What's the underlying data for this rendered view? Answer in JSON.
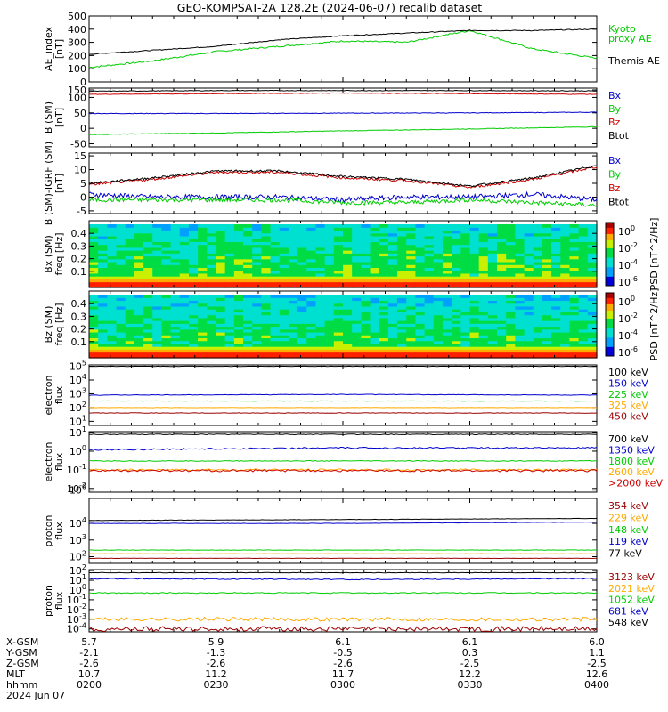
{
  "page": {
    "title": "GEO-KOMPSAT-2A 128.2E (2024-06-07) recalib dataset"
  },
  "colors": {
    "black": "#000000",
    "blue": "#0000cc",
    "green": "#00cc00",
    "red": "#cc0000",
    "orange": "#ffaa00",
    "darkred": "#990000"
  },
  "panels": [
    {
      "id": "ae",
      "ylabel": [
        "AE_index",
        "[nT]"
      ],
      "ylim": [
        0,
        500
      ],
      "yticks": [
        "500",
        "400",
        "300",
        "200",
        "100",
        "0"
      ],
      "legend": [
        {
          "text": "Kyoto",
          "color": "#00cc00"
        },
        {
          "text": "proxy AE",
          "color": "#00cc00"
        },
        {
          "text": "Themis AE",
          "color": "#000000"
        }
      ]
    },
    {
      "id": "bsm",
      "ylabel": [
        "B (SM)",
        "[nT]"
      ],
      "ylim": [
        -60,
        130
      ],
      "yticks": [
        "150",
        "100",
        "50",
        "0",
        "-50"
      ],
      "legend": [
        {
          "text": "Bx",
          "color": "#0000cc"
        },
        {
          "text": "By",
          "color": "#00cc00"
        },
        {
          "text": "Bz",
          "color": "#cc0000"
        },
        {
          "text": "Btot",
          "color": "#000000"
        }
      ]
    },
    {
      "id": "bres",
      "ylabel": [
        "B (SM)-IGRF (SM)",
        "[nT]"
      ],
      "ylim": [
        -6,
        16
      ],
      "yticks": [
        "15",
        "10",
        "5",
        "0",
        "-5"
      ],
      "legend": [
        {
          "text": "Bx",
          "color": "#0000cc"
        },
        {
          "text": "By",
          "color": "#00cc00"
        },
        {
          "text": "Bz",
          "color": "#cc0000"
        },
        {
          "text": "Btot",
          "color": "#000000"
        }
      ]
    },
    {
      "id": "bxspec",
      "ylabel": [
        "Bx (SM)",
        "freq [Hz]"
      ],
      "yticks": [
        "0.4",
        "0.3",
        "0.2",
        "0.1"
      ],
      "colorbar": {
        "ticks": [
          "10^0",
          "10^-2",
          "10^-4",
          "10^-6"
        ],
        "label": "PSD [nT^2/Hz]"
      }
    },
    {
      "id": "bzspec",
      "ylabel": [
        "Bz (SM)",
        "freq [Hz]"
      ],
      "yticks": [
        "0.4",
        "0.3",
        "0.2",
        "0.1"
      ],
      "colorbar": {
        "ticks": [
          "10^0",
          "10^-2",
          "10^-4",
          "10^-6"
        ],
        "label": "PSD [nT^2/Hz]"
      }
    },
    {
      "id": "eflux1",
      "ylabel": [
        "electron",
        "flux"
      ],
      "yticks": [
        "10^5",
        "10^4",
        "10^3",
        "10^2",
        "10^1"
      ],
      "legend": [
        {
          "text": "100 keV",
          "color": "#000000"
        },
        {
          "text": "150 keV",
          "color": "#0000cc"
        },
        {
          "text": "225 keV",
          "color": "#00cc00"
        },
        {
          "text": "325 keV",
          "color": "#ffaa00"
        },
        {
          "text": "450 keV",
          "color": "#990000"
        }
      ]
    },
    {
      "id": "eflux2",
      "ylabel": [
        "electron",
        "flux"
      ],
      "yticks": [
        "10^1",
        "10^0",
        "10^-1",
        "10^-2"
      ],
      "legend": [
        {
          "text": "700 keV",
          "color": "#000000"
        },
        {
          "text": "1350 keV",
          "color": "#0000cc"
        },
        {
          "text": "1800 keV",
          "color": "#00cc00"
        },
        {
          "text": "2600 keV",
          "color": "#ffaa00"
        },
        {
          "text": ">2000 keV",
          "color": "#cc0000"
        }
      ]
    },
    {
      "id": "pflux1",
      "ylabel": [
        "proton",
        "flux"
      ],
      "yticks": [
        "10^6",
        "10^4",
        "10^3",
        "10^2"
      ],
      "legend": [
        {
          "text": "354 keV",
          "color": "#990000"
        },
        {
          "text": "229 keV",
          "color": "#ffaa00"
        },
        {
          "text": "148 keV",
          "color": "#00cc00"
        },
        {
          "text": "119 keV",
          "color": "#0000cc"
        },
        {
          "text": "77 keV",
          "color": "#000000"
        }
      ]
    },
    {
      "id": "pflux2",
      "ylabel": [
        "proton",
        "flux"
      ],
      "yticks": [
        "10^2",
        "10^1",
        "10^0",
        "10^-1",
        "10^-2",
        "10^-3",
        "10^-4"
      ],
      "legend": [
        {
          "text": "3123 keV",
          "color": "#990000"
        },
        {
          "text": "2021 keV",
          "color": "#ffaa00"
        },
        {
          "text": "1052 keV",
          "color": "#00cc00"
        },
        {
          "text": "681 keV",
          "color": "#0000cc"
        },
        {
          "text": "548 keV",
          "color": "#000000"
        }
      ]
    }
  ],
  "xaxis": {
    "row_labels": [
      "X-GSM",
      "Y-GSM",
      "Z-GSM",
      "MLT",
      "hhmm",
      "2024 Jun 07"
    ],
    "ticks": [
      {
        "x": "5.7",
        "y": "-2.1",
        "z": "-2.6",
        "mlt": "10.7",
        "hhmm": "0200"
      },
      {
        "x": "5.9",
        "y": "-1.3",
        "z": "-2.6",
        "mlt": "11.2",
        "hhmm": "0230"
      },
      {
        "x": "6.1",
        "y": "-0.5",
        "z": "-2.6",
        "mlt": "11.7",
        "hhmm": "0300"
      },
      {
        "x": "6.1",
        "y": "0.3",
        "z": "-2.5",
        "mlt": "12.2",
        "hhmm": "0330"
      },
      {
        "x": "6.0",
        "y": "1.1",
        "z": "-2.5",
        "mlt": "12.6",
        "hhmm": "0400"
      }
    ]
  },
  "chart_data": [
    {
      "type": "line",
      "title": "GEO-KOMPSAT-2A 128.2E (2024-06-07) recalib dataset",
      "ylabel": "AE_index [nT]",
      "ylim": [
        0,
        500
      ],
      "x": [
        "0200",
        "0215",
        "0230",
        "0245",
        "0300",
        "0315",
        "0330",
        "0345",
        "0400"
      ],
      "series": [
        {
          "name": "Kyoto proxy AE",
          "values": [
            110,
            160,
            230,
            270,
            310,
            300,
            390,
            250,
            180
          ]
        },
        {
          "name": "Themis AE",
          "values": [
            210,
            240,
            270,
            320,
            350,
            370,
            390,
            390,
            400
          ]
        }
      ]
    },
    {
      "type": "line",
      "ylabel": "B (SM) [nT]",
      "ylim": [
        -60,
        130
      ],
      "x": [
        "0200",
        "0230",
        "0300",
        "0330",
        "0400"
      ],
      "series": [
        {
          "name": "Bx",
          "values": [
            48,
            48,
            49,
            50,
            52
          ]
        },
        {
          "name": "By",
          "values": [
            -20,
            -15,
            -8,
            -2,
            5
          ]
        },
        {
          "name": "Bz",
          "values": [
            110,
            112,
            114,
            112,
            110
          ]
        },
        {
          "name": "Btot",
          "values": [
            120,
            122,
            122,
            122,
            121
          ]
        }
      ]
    },
    {
      "type": "line",
      "ylabel": "B (SM)-IGRF (SM) [nT]",
      "ylim": [
        -6,
        16
      ],
      "x": [
        "0200",
        "0215",
        "0230",
        "0245",
        "0300",
        "0315",
        "0330",
        "0345",
        "0400"
      ],
      "series": [
        {
          "name": "Bx",
          "values": [
            1,
            0,
            0,
            0,
            -1,
            0,
            0,
            1,
            -1
          ]
        },
        {
          "name": "By",
          "values": [
            -1,
            -1,
            -1,
            -1,
            -2,
            -2,
            -1,
            -2,
            -3
          ]
        },
        {
          "name": "Bz",
          "values": [
            4.5,
            6.5,
            9,
            9,
            7,
            6,
            3.5,
            6.5,
            11
          ]
        },
        {
          "name": "Btot",
          "values": [
            5,
            7,
            9.5,
            9.5,
            7.5,
            6.5,
            4,
            7,
            11.5
          ]
        }
      ]
    },
    {
      "type": "heatmap",
      "ylabel": "Bx (SM) freq [Hz]",
      "ylim": [
        0,
        0.5
      ],
      "colorbar": "PSD [nT^2/Hz]",
      "zrange": [
        "10^-6",
        "10^0"
      ]
    },
    {
      "type": "heatmap",
      "ylabel": "Bz (SM) freq [Hz]",
      "ylim": [
        0,
        0.5
      ],
      "colorbar": "PSD [nT^2/Hz]",
      "zrange": [
        "10^-6",
        "10^0"
      ]
    },
    {
      "type": "line",
      "ylabel": "electron flux",
      "yscale": "log",
      "x": [
        "0200",
        "0300",
        "0400"
      ],
      "series": [
        {
          "name": "100 keV",
          "values": [
            100000,
            100000,
            100000
          ]
        },
        {
          "name": "150 keV",
          "values": [
            800,
            900,
            800
          ]
        },
        {
          "name": "225 keV",
          "values": [
            300,
            300,
            300
          ]
        },
        {
          "name": "325 keV",
          "values": [
            100,
            100,
            100
          ]
        },
        {
          "name": "450 keV",
          "values": [
            40,
            40,
            40
          ]
        }
      ]
    },
    {
      "type": "line",
      "ylabel": "electron flux",
      "yscale": "log",
      "x": [
        "0200",
        "0300",
        "0400"
      ],
      "series": [
        {
          "name": "700 keV",
          "values": [
            8,
            8,
            8
          ]
        },
        {
          "name": "1350 keV",
          "values": [
            1.2,
            1.5,
            1.5
          ]
        },
        {
          "name": "1800 keV",
          "values": [
            0.3,
            0.3,
            0.3
          ]
        },
        {
          "name": "2600 keV",
          "values": [
            0.1,
            0.1,
            0.1
          ]
        },
        {
          "name": ">2000 keV",
          "values": [
            0.09,
            0.09,
            0.09
          ]
        }
      ]
    },
    {
      "type": "line",
      "ylabel": "proton flux",
      "yscale": "log",
      "x": [
        "0200",
        "0300",
        "0400"
      ],
      "series": [
        {
          "name": "354 keV",
          "values": [
            80,
            80,
            80
          ]
        },
        {
          "name": "229 keV",
          "values": [
            150,
            150,
            150
          ]
        },
        {
          "name": "148 keV",
          "values": [
            250,
            250,
            250
          ]
        },
        {
          "name": "119 keV",
          "values": [
            10000,
            10000,
            12000
          ]
        },
        {
          "name": "77 keV",
          "values": [
            15000,
            17000,
            20000
          ]
        }
      ]
    },
    {
      "type": "line",
      "ylabel": "proton flux",
      "yscale": "log",
      "x": [
        "0200",
        "0300",
        "0400"
      ],
      "series": [
        {
          "name": "3123 keV",
          "values": [
            0.0001,
            0.0001,
            0.0001
          ]
        },
        {
          "name": "2021 keV",
          "values": [
            0.001,
            0.001,
            0.001
          ]
        },
        {
          "name": "1052 keV",
          "values": [
            0.5,
            0.5,
            0.5
          ]
        },
        {
          "name": "681 keV",
          "values": [
            15,
            12,
            15
          ]
        },
        {
          "name": "548 keV",
          "values": [
            60,
            60,
            60
          ]
        }
      ]
    }
  ]
}
